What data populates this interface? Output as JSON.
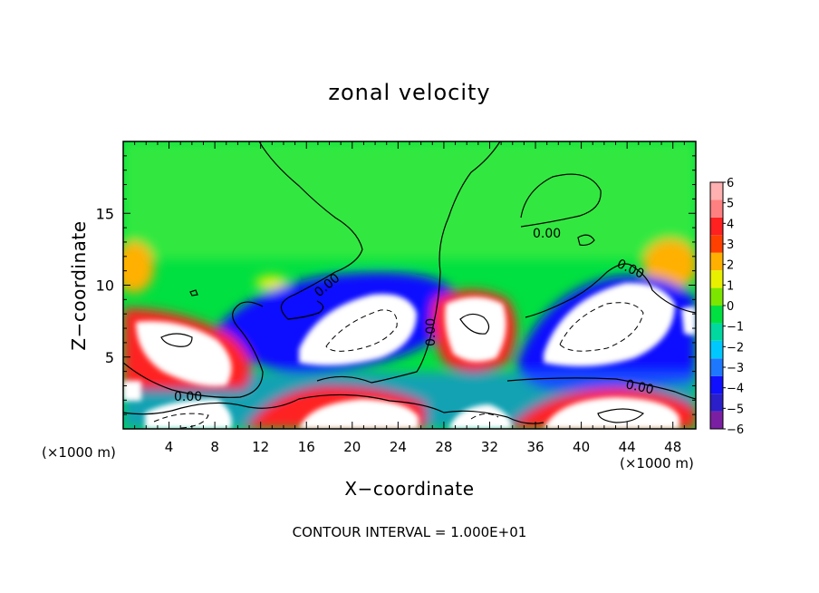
{
  "chart_data": {
    "type": "heatmap",
    "title": "zonal velocity",
    "xlabel": "X−coordinate",
    "ylabel": "Z−coordinate",
    "x_unit_label": "(×1000 m)",
    "xlim": [
      0,
      50
    ],
    "ylim": [
      0,
      20
    ],
    "x_ticks": [
      4,
      8,
      12,
      16,
      20,
      24,
      28,
      32,
      36,
      40,
      44,
      48
    ],
    "y_ticks": [
      5,
      10,
      15
    ],
    "colorbar": {
      "levels": [
        -6,
        -5,
        -4,
        -3,
        -2,
        -1,
        0,
        1,
        2,
        3,
        4,
        5,
        6
      ],
      "labels": [
        "6",
        "5",
        "4",
        "3",
        "2",
        "1",
        "0",
        "−1",
        "−2",
        "−3",
        "−4",
        "−5",
        "−6"
      ],
      "colors": [
        "#7b1fa2",
        "#2a1fc8",
        "#1010ff",
        "#1e78ff",
        "#00c8ff",
        "#00d8a0",
        "#00e040",
        "#7ce600",
        "#e8f000",
        "#ffb000",
        "#ff4000",
        "#ff2020",
        "#ff8080",
        "#ffb0b0"
      ],
      "over_color": "#ffffff"
    },
    "contour_labels": [
      "0.00",
      "0.00",
      "0.00",
      "0.00",
      "0.00",
      "0.00"
    ],
    "footer": "CONTOUR INTERVAL = 1.000E+01",
    "grid": false,
    "legend": "colorbar-right"
  }
}
